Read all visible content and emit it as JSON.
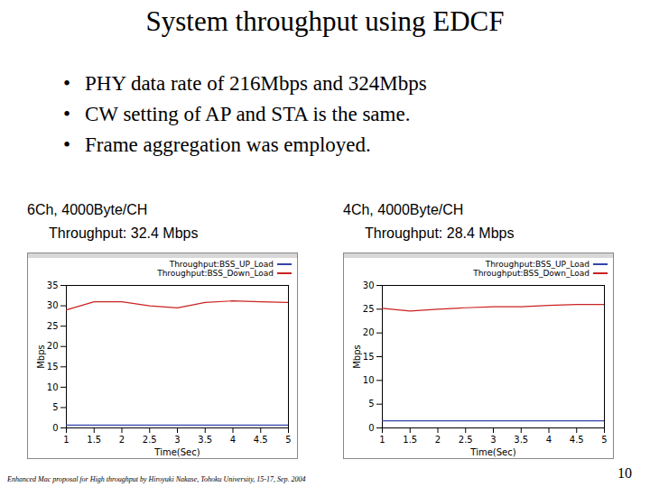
{
  "title": "System throughput using EDCF",
  "bullets": [
    "PHY data rate of 216Mbps and 324Mbps",
    "CW setting of AP and STA is the same.",
    "Frame aggregation was employed."
  ],
  "footer": "Enhanced Mac proposal for High throughput by Hiroyuki Nakase, Tohoku University, 15-17, Sep. 2004",
  "page": "10",
  "chart_data": [
    {
      "type": "line",
      "title": "6Ch,  4000Byte/CH",
      "subtitle": "Throughput: 32.4 Mbps",
      "x_label": "Time(Sec)",
      "y_label": "Mbps",
      "x": [
        1,
        1.5,
        2,
        2.5,
        3,
        3.5,
        4,
        4.5,
        5
      ],
      "series": [
        {
          "name": "Throughput:BSS_UP_Load",
          "color": "#3344aa",
          "values": [
            0.7,
            0.7,
            0.7,
            0.7,
            0.7,
            0.7,
            0.7,
            0.7,
            0.7
          ]
        },
        {
          "name": "Throughput:BSS_Down_Load",
          "color": "#cc2222",
          "values": [
            29,
            31,
            31,
            30,
            29.5,
            30.8,
            31.2,
            31,
            30.8
          ]
        }
      ],
      "xlim": [
        1,
        5
      ],
      "xticks": [
        1,
        1.5,
        2,
        2.5,
        3,
        3.5,
        4,
        4.5,
        5
      ],
      "ylim": [
        0,
        35
      ],
      "yticks": [
        0,
        5,
        10,
        15,
        20,
        25,
        30,
        35
      ],
      "grid": false,
      "legend": "upper right"
    },
    {
      "type": "line",
      "title": "4Ch,  4000Byte/CH",
      "subtitle": "Throughput: 28.4 Mbps",
      "x_label": "Time(Sec)",
      "y_label": "Mbps",
      "x": [
        1,
        1.5,
        2,
        2.5,
        3,
        3.5,
        4,
        4.5,
        5
      ],
      "series": [
        {
          "name": "Throughput:BSS_UP_Load",
          "color": "#3344aa",
          "values": [
            1.5,
            1.5,
            1.5,
            1.5,
            1.5,
            1.5,
            1.5,
            1.5,
            1.5
          ]
        },
        {
          "name": "Throughput:BSS_Down_Load",
          "color": "#cc2222",
          "values": [
            25.2,
            24.6,
            25,
            25.3,
            25.5,
            25.5,
            25.8,
            26,
            26
          ]
        }
      ],
      "xlim": [
        1,
        5
      ],
      "xticks": [
        1,
        1.5,
        2,
        2.5,
        3,
        3.5,
        4,
        4.5,
        5
      ],
      "ylim": [
        0,
        30
      ],
      "yticks": [
        0,
        5,
        10,
        15,
        20,
        25,
        30
      ],
      "grid": false,
      "legend": "upper right"
    }
  ]
}
